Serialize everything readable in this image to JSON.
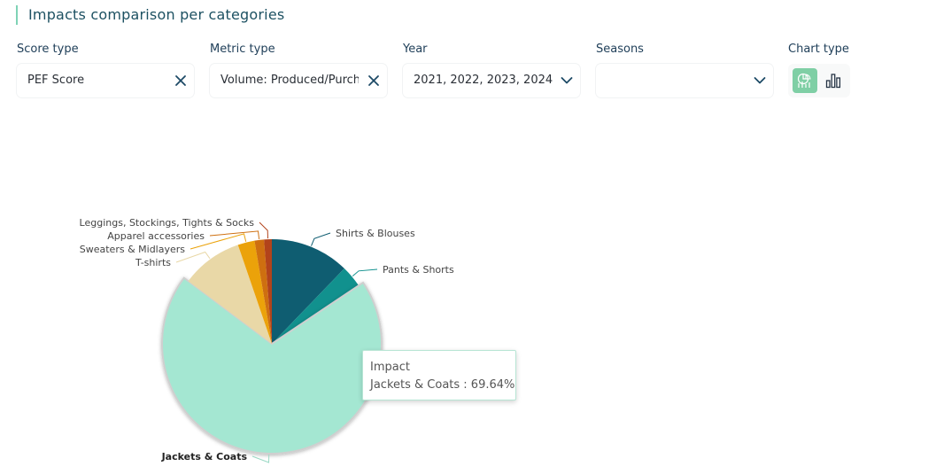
{
  "header": {
    "title": "Impacts comparison per categories"
  },
  "filters": [
    {
      "label": "Score type",
      "value": "PEF Score",
      "action": "clear"
    },
    {
      "label": "Metric type",
      "value": "Volume: Produced/Purch",
      "action": "clear"
    },
    {
      "label": "Year",
      "value": "2021, 2022, 2023, 2024",
      "action": "dropdown"
    },
    {
      "label": "Seasons",
      "value": "",
      "action": "dropdown"
    }
  ],
  "chart_type": {
    "label": "Chart type",
    "options": [
      {
        "icon": "pie-chart-icon",
        "active": true
      },
      {
        "icon": "bar-chart-icon",
        "active": false
      }
    ]
  },
  "tooltip": {
    "title": "Impact",
    "text": "Jackets & Coats : 69.64%"
  },
  "chart_data": {
    "type": "pie",
    "title": "",
    "unit": "%",
    "series_name": "Impact",
    "slices": [
      {
        "label": "Shirts & Blouses",
        "value": 12.2,
        "color": "#0f5d71"
      },
      {
        "label": "Pants & Shorts",
        "value": 3.4,
        "color": "#11918e"
      },
      {
        "label": "Jackets & Coats",
        "value": 69.64,
        "color": "#a4e7d2",
        "highlighted": true
      },
      {
        "label": "T-shirts",
        "value": 9.5,
        "color": "#e9d8a7"
      },
      {
        "label": "Sweaters & Midlayers",
        "value": 2.6,
        "color": "#eba20a"
      },
      {
        "label": "Apparel accessories",
        "value": 1.46,
        "color": "#ce6f10"
      },
      {
        "label": "Leggings, Stockings, Tights & Socks",
        "value": 1.2,
        "color": "#b2431b"
      }
    ]
  }
}
